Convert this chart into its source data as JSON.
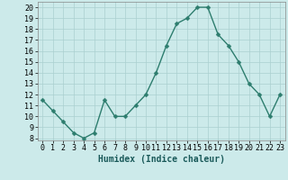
{
  "x": [
    0,
    1,
    2,
    3,
    4,
    5,
    6,
    7,
    8,
    9,
    10,
    11,
    12,
    13,
    14,
    15,
    16,
    17,
    18,
    19,
    20,
    21,
    22,
    23
  ],
  "y": [
    11.5,
    10.5,
    9.5,
    8.5,
    8.0,
    8.5,
    11.5,
    10.0,
    10.0,
    11.0,
    12.0,
    14.0,
    16.5,
    18.5,
    19.0,
    20.0,
    20.0,
    17.5,
    16.5,
    15.0,
    13.0,
    12.0,
    10.0,
    12.0
  ],
  "xlabel": "Humidex (Indice chaleur)",
  "xlim": [
    -0.5,
    23.5
  ],
  "ylim": [
    7.8,
    20.5
  ],
  "yticks": [
    8,
    9,
    10,
    11,
    12,
    13,
    14,
    15,
    16,
    17,
    18,
    19,
    20
  ],
  "xticks": [
    0,
    1,
    2,
    3,
    4,
    5,
    6,
    7,
    8,
    9,
    10,
    11,
    12,
    13,
    14,
    15,
    16,
    17,
    18,
    19,
    20,
    21,
    22,
    23
  ],
  "line_color": "#2d7d6e",
  "bg_color": "#cceaea",
  "grid_color": "#aacfcf",
  "xlabel_fontsize": 7,
  "tick_fontsize": 6,
  "markersize": 2.5,
  "linewidth": 1.0
}
